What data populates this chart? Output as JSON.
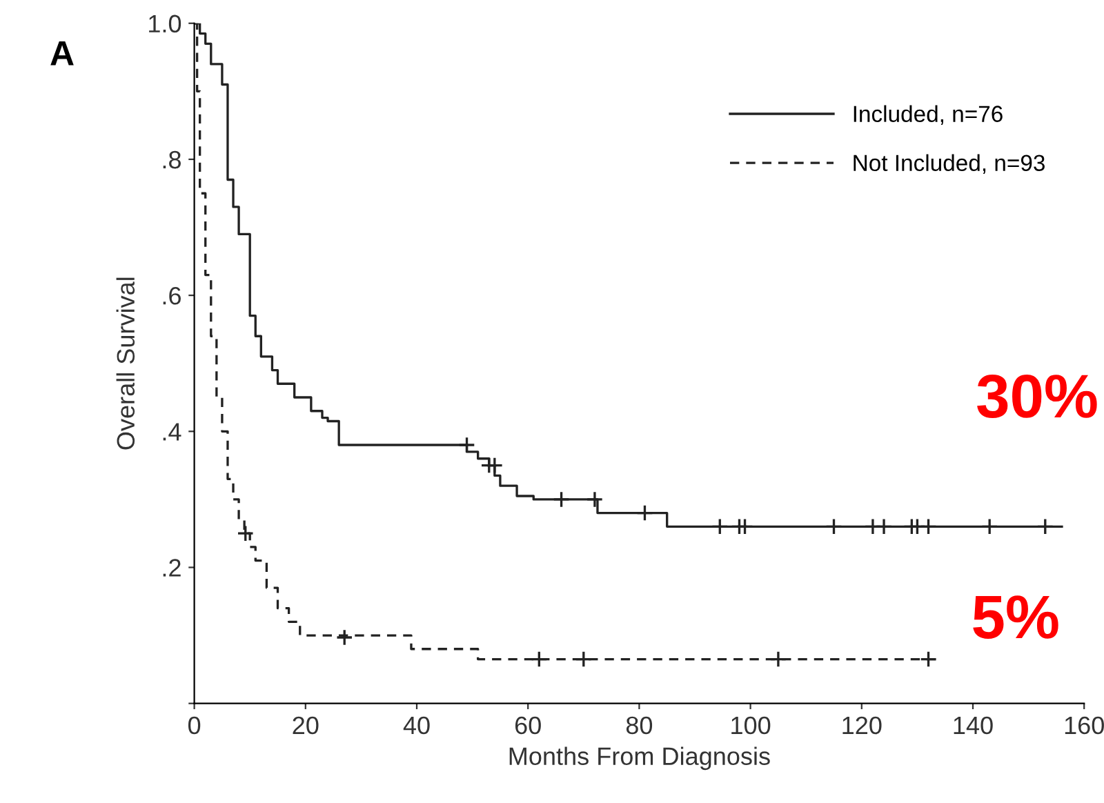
{
  "chart_data": {
    "type": "step",
    "xlabel": "Months From Diagnosis",
    "ylabel": "Overall Survival",
    "annotations": [
      "A",
      "30%",
      "5%"
    ],
    "xlim": [
      0,
      160
    ],
    "ylim": [
      0,
      1.0
    ],
    "xticks": [
      0,
      20,
      40,
      60,
      80,
      100,
      120,
      140,
      160
    ],
    "yticks": [
      {
        "value": 0,
        "label": null
      },
      {
        "value": 0.2,
        "label": ".2"
      },
      {
        "value": 0.4,
        "label": ".4"
      },
      {
        "value": 0.6,
        "label": ".6"
      },
      {
        "value": 0.8,
        "label": ".8"
      },
      {
        "value": 1.0,
        "label": "1.0"
      }
    ],
    "legend": "top right",
    "grid": false,
    "series": [
      {
        "name": "Included, n=76",
        "color": "#222222",
        "line_style": "solid",
        "x": [
          0,
          1,
          2,
          3,
          5,
          6,
          7,
          8,
          10,
          11,
          12,
          14,
          15,
          18,
          21,
          23,
          24,
          26,
          49,
          51,
          53,
          54,
          55,
          58,
          61,
          72.5,
          85,
          156
        ],
        "values": [
          1.0,
          0.985,
          0.97,
          0.94,
          0.91,
          0.77,
          0.73,
          0.69,
          0.57,
          0.54,
          0.51,
          0.49,
          0.47,
          0.45,
          0.43,
          0.42,
          0.415,
          0.38,
          0.37,
          0.36,
          0.35,
          0.335,
          0.32,
          0.305,
          0.3,
          0.28,
          0.26,
          0.26
        ]
      },
      {
        "name": "Not Included, n=93",
        "color": "#222222",
        "line_style": "dashed",
        "x": [
          0,
          0.5,
          1,
          2,
          3,
          4,
          5,
          6,
          7,
          8,
          9,
          10,
          11,
          13,
          15,
          17,
          19,
          39,
          51,
          134
        ],
        "values": [
          1.0,
          0.9,
          0.75,
          0.63,
          0.54,
          0.45,
          0.4,
          0.33,
          0.3,
          0.27,
          0.25,
          0.23,
          0.21,
          0.17,
          0.14,
          0.12,
          0.1,
          0.08,
          0.065,
          0.065
        ]
      },
      {
        "type": "scatter",
        "marker": "cross",
        "color": "#222222",
        "x": [
          49,
          53,
          54,
          66,
          72,
          81,
          94.5,
          98,
          99,
          115,
          122,
          124,
          129,
          130,
          132,
          143,
          153
        ],
        "values": [
          0.38,
          0.35,
          0.35,
          0.3,
          0.3,
          0.28,
          0.26,
          0.26,
          0.26,
          0.26,
          0.26,
          0.26,
          0.26,
          0.26,
          0.26,
          0.26,
          0.26
        ]
      },
      {
        "type": "scatter",
        "marker": "cross",
        "color": "#222222",
        "x": [
          9.2,
          27,
          62,
          70,
          105,
          132
        ],
        "values": [
          0.25,
          0.097,
          0.065,
          0.065,
          0.065,
          0.065
        ]
      }
    ]
  }
}
